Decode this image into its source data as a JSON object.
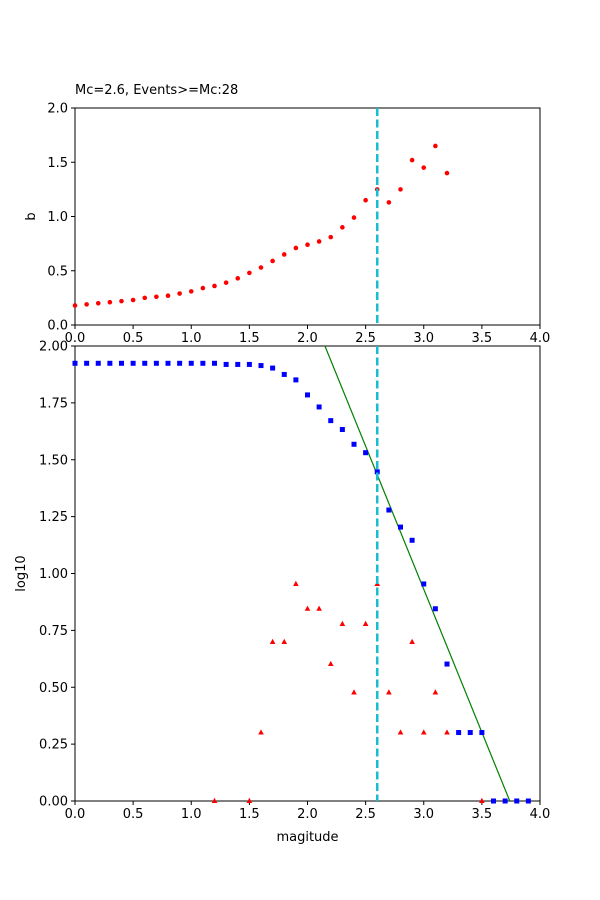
{
  "chart_data": [
    {
      "type": "scatter",
      "title": "Mc=2.6, Events>=Mc:28",
      "xlabel": "",
      "ylabel": "b",
      "xlim": [
        0,
        4
      ],
      "ylim": [
        0,
        2
      ],
      "xticks": [
        "0.0",
        "0.5",
        "1.0",
        "1.5",
        "2.0",
        "2.5",
        "3.0",
        "3.5",
        "4.0"
      ],
      "yticks": [
        "0.0",
        "0.5",
        "1.0",
        "1.5",
        "2.0"
      ],
      "grid": false,
      "series": [
        {
          "marker": "circle",
          "color": "#ff0000",
          "x": [
            0.0,
            0.1,
            0.2,
            0.3,
            0.4,
            0.5,
            0.6,
            0.7,
            0.8,
            0.9,
            1.0,
            1.1,
            1.2,
            1.3,
            1.4,
            1.5,
            1.6,
            1.7,
            1.8,
            1.9,
            2.0,
            2.1,
            2.2,
            2.3,
            2.4,
            2.5,
            2.6,
            2.7,
            2.8,
            2.9,
            3.0,
            3.1,
            3.2
          ],
          "y": [
            0.18,
            0.19,
            0.2,
            0.21,
            0.22,
            0.23,
            0.25,
            0.26,
            0.27,
            0.29,
            0.31,
            0.34,
            0.36,
            0.39,
            0.43,
            0.48,
            0.53,
            0.59,
            0.65,
            0.71,
            0.74,
            0.77,
            0.81,
            0.9,
            0.99,
            1.15,
            1.25,
            1.13,
            1.25,
            1.52,
            1.45,
            1.65,
            1.4
          ]
        }
      ],
      "vlines": [
        {
          "x": 2.6,
          "color": "#17becf",
          "style": "dashed"
        }
      ]
    },
    {
      "type": "scatter",
      "title": "",
      "xlabel": "magitude",
      "ylabel": "log10",
      "xlim": [
        0,
        4
      ],
      "ylim": [
        0,
        2
      ],
      "xticks": [
        "0.0",
        "0.5",
        "1.0",
        "1.5",
        "2.0",
        "2.5",
        "3.0",
        "3.5",
        "4.0"
      ],
      "yticks": [
        "0.00",
        "0.25",
        "0.50",
        "0.75",
        "1.00",
        "1.25",
        "1.50",
        "1.75",
        "2.00"
      ],
      "grid": false,
      "series": [
        {
          "marker": "square",
          "color": "#0000ff",
          "x": [
            0.0,
            0.1,
            0.2,
            0.3,
            0.4,
            0.5,
            0.6,
            0.7,
            0.8,
            0.9,
            1.0,
            1.1,
            1.2,
            1.3,
            1.4,
            1.5,
            1.6,
            1.7,
            1.8,
            1.9,
            2.0,
            2.1,
            2.2,
            2.3,
            2.4,
            2.5,
            2.6,
            2.7,
            2.8,
            2.9,
            3.0,
            3.1,
            3.2,
            3.3,
            3.4,
            3.5,
            3.6,
            3.7,
            3.8,
            3.9
          ],
          "y": [
            1.924,
            1.924,
            1.924,
            1.924,
            1.924,
            1.924,
            1.924,
            1.924,
            1.924,
            1.924,
            1.924,
            1.924,
            1.924,
            1.919,
            1.919,
            1.919,
            1.914,
            1.903,
            1.875,
            1.851,
            1.785,
            1.732,
            1.672,
            1.633,
            1.568,
            1.531,
            1.447,
            1.279,
            1.204,
            1.146,
            0.954,
            0.845,
            0.602,
            0.301,
            0.301,
            0.301,
            0.0,
            0.0,
            0.0,
            0.0
          ]
        },
        {
          "marker": "triangle",
          "color": "#ff0000",
          "x": [
            1.2,
            1.5,
            1.6,
            1.7,
            1.8,
            1.9,
            2.0,
            2.1,
            2.2,
            2.3,
            2.4,
            2.5,
            2.6,
            2.7,
            2.8,
            2.9,
            3.0,
            3.1,
            3.2,
            3.5
          ],
          "y": [
            0.0,
            0.0,
            0.301,
            0.699,
            0.699,
            0.954,
            0.845,
            0.845,
            0.602,
            0.778,
            0.477,
            0.778,
            0.954,
            0.477,
            0.301,
            0.699,
            0.301,
            0.477,
            0.301,
            0.0
          ]
        }
      ],
      "fit_line": {
        "color": "#008000",
        "x": [
          2.15,
          3.74
        ],
        "y": [
          2.0,
          0.0
        ]
      },
      "vlines": [
        {
          "x": 2.6,
          "color": "#17becf",
          "style": "dashed"
        }
      ]
    }
  ]
}
